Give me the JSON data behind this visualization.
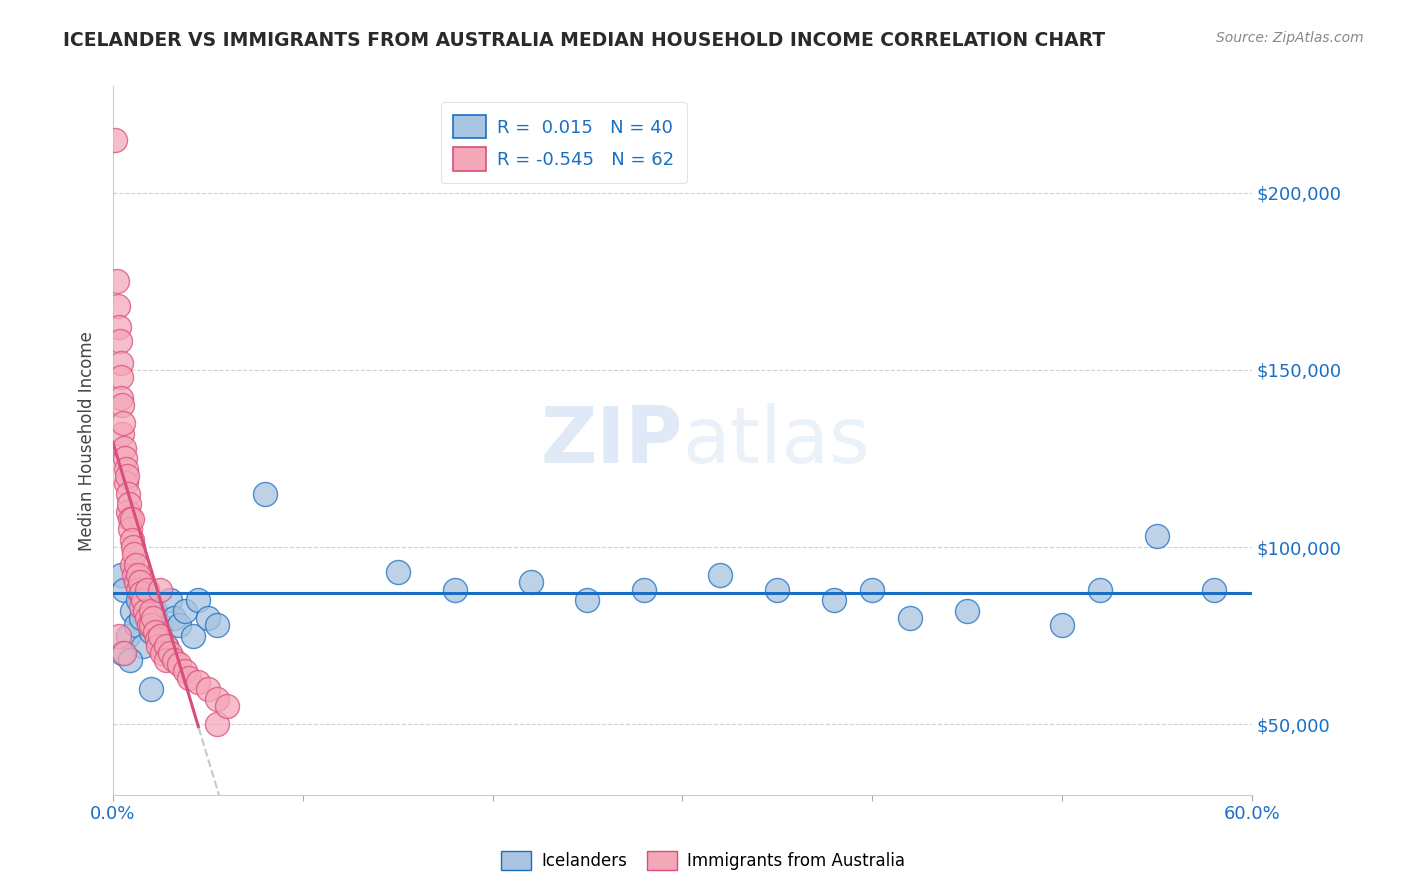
{
  "title": "ICELANDER VS IMMIGRANTS FROM AUSTRALIA MEDIAN HOUSEHOLD INCOME CORRELATION CHART",
  "source": "Source: ZipAtlas.com",
  "ylabel": "Median Household Income",
  "watermark": "ZIPatlas",
  "blue_R": 0.015,
  "blue_N": 40,
  "pink_R": -0.545,
  "pink_N": 62,
  "blue_color": "#a8c4e0",
  "pink_color": "#f4a7b9",
  "blue_line_color": "#1a6fc4",
  "pink_line_color": "#d94f7a",
  "gray_dash_color": "#c8c8c8",
  "blue_scatter": [
    [
      0.4,
      92000
    ],
    [
      0.6,
      88000
    ],
    [
      0.8,
      75000
    ],
    [
      1.0,
      82000
    ],
    [
      1.2,
      78000
    ],
    [
      1.3,
      85000
    ],
    [
      1.5,
      80000
    ],
    [
      1.6,
      72000
    ],
    [
      1.8,
      88000
    ],
    [
      2.0,
      76000
    ],
    [
      2.2,
      82000
    ],
    [
      2.5,
      78000
    ],
    [
      2.8,
      72000
    ],
    [
      3.0,
      85000
    ],
    [
      3.2,
      80000
    ],
    [
      3.5,
      78000
    ],
    [
      3.8,
      82000
    ],
    [
      4.2,
      75000
    ],
    [
      4.5,
      85000
    ],
    [
      5.0,
      80000
    ],
    [
      5.5,
      78000
    ],
    [
      8.0,
      115000
    ],
    [
      15.0,
      93000
    ],
    [
      18.0,
      88000
    ],
    [
      22.0,
      90000
    ],
    [
      25.0,
      85000
    ],
    [
      28.0,
      88000
    ],
    [
      32.0,
      92000
    ],
    [
      35.0,
      88000
    ],
    [
      38.0,
      85000
    ],
    [
      40.0,
      88000
    ],
    [
      42.0,
      80000
    ],
    [
      45.0,
      82000
    ],
    [
      50.0,
      78000
    ],
    [
      52.0,
      88000
    ],
    [
      55.0,
      103000
    ],
    [
      58.0,
      88000
    ],
    [
      0.5,
      70000
    ],
    [
      0.9,
      68000
    ],
    [
      2.0,
      60000
    ]
  ],
  "pink_scatter": [
    [
      0.1,
      215000
    ],
    [
      0.2,
      175000
    ],
    [
      0.25,
      168000
    ],
    [
      0.3,
      162000
    ],
    [
      0.35,
      158000
    ],
    [
      0.4,
      152000
    ],
    [
      0.45,
      148000
    ],
    [
      0.45,
      142000
    ],
    [
      0.5,
      140000
    ],
    [
      0.5,
      132000
    ],
    [
      0.55,
      135000
    ],
    [
      0.6,
      128000
    ],
    [
      0.65,
      125000
    ],
    [
      0.7,
      122000
    ],
    [
      0.7,
      118000
    ],
    [
      0.75,
      120000
    ],
    [
      0.8,
      115000
    ],
    [
      0.8,
      110000
    ],
    [
      0.85,
      112000
    ],
    [
      0.9,
      108000
    ],
    [
      0.9,
      105000
    ],
    [
      1.0,
      108000
    ],
    [
      1.0,
      102000
    ],
    [
      1.0,
      95000
    ],
    [
      1.05,
      100000
    ],
    [
      1.1,
      98000
    ],
    [
      1.1,
      92000
    ],
    [
      1.2,
      95000
    ],
    [
      1.2,
      90000
    ],
    [
      1.3,
      92000
    ],
    [
      1.3,
      88000
    ],
    [
      1.4,
      90000
    ],
    [
      1.5,
      87000
    ],
    [
      1.5,
      83000
    ],
    [
      1.6,
      85000
    ],
    [
      1.7,
      82000
    ],
    [
      1.8,
      80000
    ],
    [
      1.8,
      88000
    ],
    [
      1.9,
      78000
    ],
    [
      2.0,
      82000
    ],
    [
      2.0,
      78000
    ],
    [
      2.1,
      80000
    ],
    [
      2.2,
      76000
    ],
    [
      2.3,
      74000
    ],
    [
      2.4,
      72000
    ],
    [
      2.5,
      75000
    ],
    [
      2.5,
      88000
    ],
    [
      2.6,
      70000
    ],
    [
      2.8,
      72000
    ],
    [
      2.8,
      68000
    ],
    [
      3.0,
      70000
    ],
    [
      3.2,
      68000
    ],
    [
      3.5,
      67000
    ],
    [
      3.8,
      65000
    ],
    [
      4.0,
      63000
    ],
    [
      4.5,
      62000
    ],
    [
      5.0,
      60000
    ],
    [
      5.5,
      57000
    ],
    [
      5.5,
      50000
    ],
    [
      6.0,
      55000
    ],
    [
      0.3,
      75000
    ],
    [
      0.6,
      70000
    ]
  ],
  "y_ticks": [
    50000,
    100000,
    150000,
    200000
  ],
  "y_tick_labels": [
    "$50,000",
    "$100,000",
    "$150,000",
    "$200,000"
  ],
  "xlim": [
    0,
    60
  ],
  "ylim": [
    30000,
    230000
  ],
  "blue_line_y": 87000,
  "title_color": "#2a2a2a",
  "axis_label_color": "#1a6fc4",
  "ytick_color": "#1a6fc4"
}
